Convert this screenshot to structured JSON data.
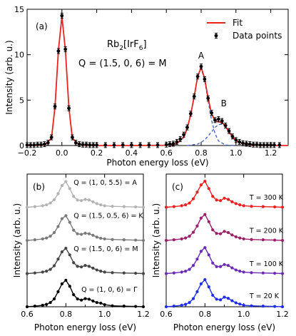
{
  "chart_data": [
    {
      "panel": "(a)",
      "type": "line",
      "compound": "Rb2[IrF6]",
      "compound_parts": {
        "base1": "Rb",
        "sub1": "2",
        "base2": "[IrF",
        "sub2": "6",
        "base3": "]"
      },
      "q_label": "Q = (1.5, 0, 6) = M",
      "xlabel": "Photon energy loss (eV)",
      "ylabel": "Intensity (arb. u.)",
      "xlim": [
        -0.2,
        1.3
      ],
      "ylim": [
        0,
        15
      ],
      "xticks": [
        "−0.2",
        "0.0",
        "0.2",
        "0.4",
        "0.6",
        "0.8",
        "1.0",
        "1.2"
      ],
      "xtick_values": [
        -0.2,
        0.0,
        0.2,
        0.4,
        0.6,
        0.8,
        1.0,
        1.2
      ],
      "yticks": [
        "0",
        "5",
        "10",
        "15"
      ],
      "ytick_values": [
        0,
        5,
        10,
        15
      ],
      "legend": {
        "position": "top-right",
        "fit": "Fit",
        "data": "Data points"
      },
      "peak_labels": [
        {
          "text": "A",
          "x": 0.8,
          "y": 9.6
        },
        {
          "text": "B",
          "x": 0.93,
          "y": 4.3
        }
      ],
      "fit_color": "#e8241f",
      "component_color": "#3a5fcd",
      "data_color": "#000000",
      "fit_curve": {
        "x": [
          -0.2,
          -0.1,
          -0.06,
          -0.04,
          -0.02,
          0.0,
          0.02,
          0.04,
          0.06,
          0.1,
          0.2,
          0.4,
          0.6,
          0.66,
          0.7,
          0.72,
          0.74,
          0.76,
          0.78,
          0.8,
          0.82,
          0.84,
          0.86,
          0.88,
          0.9,
          0.92,
          0.94,
          0.96,
          0.98,
          1.0,
          1.04,
          1.1,
          1.2,
          1.3
        ],
        "y": [
          0,
          0.05,
          0.8,
          4.2,
          10.5,
          14.2,
          10.5,
          4.2,
          0.8,
          0.05,
          0,
          0,
          0.03,
          0.2,
          0.9,
          1.9,
          3.4,
          5.4,
          7.6,
          8.6,
          7.4,
          5.2,
          3.5,
          2.7,
          2.6,
          2.55,
          2.1,
          1.5,
          0.95,
          0.55,
          0.2,
          0.06,
          0,
          0
        ]
      },
      "component_A": {
        "x": [
          0.6,
          0.66,
          0.7,
          0.72,
          0.74,
          0.76,
          0.78,
          0.8,
          0.82,
          0.84,
          0.86,
          0.88,
          0.9,
          0.94,
          1.0
        ],
        "y": [
          0,
          0.2,
          0.9,
          1.9,
          3.4,
          5.4,
          7.6,
          8.5,
          7.2,
          4.9,
          2.8,
          1.3,
          0.5,
          0.05,
          0
        ]
      },
      "component_B": {
        "x": [
          0.72,
          0.78,
          0.82,
          0.86,
          0.88,
          0.9,
          0.92,
          0.94,
          0.96,
          0.98,
          1.0,
          1.04,
          1.1,
          1.2
        ],
        "y": [
          0,
          0.15,
          0.6,
          1.5,
          2.0,
          2.3,
          2.35,
          2.1,
          1.6,
          1.05,
          0.6,
          0.2,
          0.05,
          0
        ]
      },
      "data_points": {
        "x": [
          -0.2,
          -0.18,
          -0.16,
          -0.14,
          -0.12,
          -0.1,
          -0.08,
          -0.06,
          -0.04,
          -0.02,
          0.0,
          0.02,
          0.04,
          0.06,
          0.08,
          0.1,
          0.12,
          0.14,
          0.16,
          0.18,
          0.2,
          0.25,
          0.3,
          0.35,
          0.4,
          0.45,
          0.5,
          0.55,
          0.6,
          0.62,
          0.64,
          0.66,
          0.68,
          0.7,
          0.72,
          0.74,
          0.76,
          0.78,
          0.8,
          0.82,
          0.84,
          0.86,
          0.88,
          0.9,
          0.92,
          0.94,
          0.96,
          0.98,
          1.0,
          1.02,
          1.04,
          1.06,
          1.08,
          1.1,
          1.12,
          1.14,
          1.16,
          1.18,
          1.2,
          1.22,
          1.25
        ],
        "y": [
          0.05,
          0.05,
          0.05,
          0.1,
          0.1,
          0.15,
          0.3,
          0.9,
          4.3,
          10.4,
          14.3,
          10.6,
          4.1,
          0.9,
          0.3,
          0.15,
          0.1,
          0.1,
          0.05,
          0.05,
          0.05,
          0.05,
          0.05,
          0.05,
          0.05,
          0.05,
          0.05,
          0.05,
          0.1,
          0.15,
          0.2,
          0.4,
          0.7,
          1.2,
          2.0,
          3.5,
          5.4,
          7.6,
          8.7,
          7.3,
          5.2,
          3.6,
          2.8,
          2.9,
          2.7,
          2.2,
          1.6,
          1.0,
          0.6,
          0.4,
          0.25,
          0.2,
          0.15,
          0.1,
          0.1,
          0.05,
          0.05,
          0.05,
          0.05,
          0.05,
          0.05
        ]
      }
    },
    {
      "panel": "(b)",
      "type": "line",
      "xlabel": "Photon energy loss (eV)",
      "ylabel": "Intensity (arb. u.)",
      "xlim": [
        0.6,
        1.2
      ],
      "ylim": [
        0,
        4.4
      ],
      "xticks": [
        "0.6",
        "0.8",
        "1.0",
        "1.2"
      ],
      "xtick_values": [
        0.6,
        0.8,
        1.0,
        1.2
      ],
      "series": [
        {
          "name": "Q = (1, 0, 5.5) = A",
          "color": "#b3b3b3",
          "offset": 3.3,
          "label_x": 0.84,
          "label_y": 4.05,
          "x": [
            0.6,
            0.64,
            0.68,
            0.7,
            0.72,
            0.74,
            0.76,
            0.78,
            0.8,
            0.82,
            0.84,
            0.86,
            0.88,
            0.9,
            0.92,
            0.94,
            0.96,
            0.98,
            1.0,
            1.04,
            1.1,
            1.16,
            1.2
          ],
          "y": [
            0.0,
            0.02,
            0.05,
            0.08,
            0.14,
            0.25,
            0.45,
            0.72,
            0.85,
            0.62,
            0.36,
            0.24,
            0.22,
            0.26,
            0.24,
            0.18,
            0.12,
            0.08,
            0.05,
            0.03,
            0.02,
            0.01,
            0.0
          ]
        },
        {
          "name": "Q = (1.5, 0.5, 6) = K",
          "color": "#7a7a7a",
          "offset": 2.2,
          "label_x": 0.84,
          "label_y": 2.95,
          "x": [
            0.6,
            0.64,
            0.68,
            0.7,
            0.72,
            0.74,
            0.76,
            0.78,
            0.8,
            0.82,
            0.84,
            0.86,
            0.88,
            0.9,
            0.92,
            0.94,
            0.96,
            0.98,
            1.0,
            1.04,
            1.1,
            1.16,
            1.2
          ],
          "y": [
            0.0,
            0.02,
            0.05,
            0.08,
            0.14,
            0.26,
            0.46,
            0.72,
            0.82,
            0.6,
            0.34,
            0.22,
            0.2,
            0.24,
            0.22,
            0.17,
            0.11,
            0.07,
            0.05,
            0.03,
            0.02,
            0.01,
            0.0
          ]
        },
        {
          "name": "Q = (1.5, 0, 6) = M",
          "color": "#454545",
          "offset": 1.1,
          "label_x": 0.84,
          "label_y": 1.85,
          "x": [
            0.6,
            0.64,
            0.68,
            0.7,
            0.72,
            0.74,
            0.76,
            0.78,
            0.8,
            0.82,
            0.84,
            0.86,
            0.88,
            0.9,
            0.92,
            0.94,
            0.96,
            0.98,
            1.0,
            1.04,
            1.1,
            1.16,
            1.2
          ],
          "y": [
            0.0,
            0.02,
            0.05,
            0.08,
            0.14,
            0.26,
            0.48,
            0.72,
            0.84,
            0.62,
            0.36,
            0.24,
            0.22,
            0.27,
            0.24,
            0.18,
            0.12,
            0.08,
            0.05,
            0.03,
            0.02,
            0.01,
            0.0
          ]
        },
        {
          "name": "Q = (1, 0, 6) = Γ",
          "color": "#000000",
          "offset": 0.0,
          "label_x": 0.88,
          "label_y": 0.5,
          "x": [
            0.6,
            0.64,
            0.68,
            0.7,
            0.72,
            0.74,
            0.76,
            0.78,
            0.8,
            0.82,
            0.84,
            0.86,
            0.88,
            0.9,
            0.92,
            0.94,
            0.96,
            0.98,
            1.0,
            1.04,
            1.1,
            1.16,
            1.2
          ],
          "y": [
            0.0,
            0.02,
            0.05,
            0.08,
            0.14,
            0.26,
            0.5,
            0.76,
            0.88,
            0.68,
            0.4,
            0.26,
            0.22,
            0.27,
            0.25,
            0.19,
            0.14,
            0.12,
            0.07,
            0.03,
            0.02,
            0.01,
            0.0
          ]
        }
      ]
    },
    {
      "panel": "(c)",
      "type": "line",
      "xlabel": "Photon energy loss (eV)",
      "ylabel": "Intensity (arb. u.)",
      "xlim": [
        0.6,
        1.2
      ],
      "ylim": [
        0,
        4.4
      ],
      "xticks": [
        "0.6",
        "0.8",
        "1.0",
        "1.2"
      ],
      "xtick_values": [
        0.6,
        0.8,
        1.0,
        1.2
      ],
      "series": [
        {
          "name": "T = 300 K",
          "color": "#ee1f1f",
          "offset": 3.3,
          "label_x": 1.03,
          "label_y": 3.55,
          "x": [
            0.6,
            0.64,
            0.68,
            0.7,
            0.72,
            0.74,
            0.76,
            0.78,
            0.8,
            0.82,
            0.84,
            0.86,
            0.88,
            0.9,
            0.92,
            0.94,
            0.96,
            0.98,
            1.0,
            1.04,
            1.1,
            1.16,
            1.2
          ],
          "y": [
            0.0,
            0.02,
            0.05,
            0.08,
            0.14,
            0.28,
            0.5,
            0.74,
            0.86,
            0.62,
            0.36,
            0.24,
            0.22,
            0.3,
            0.26,
            0.18,
            0.12,
            0.08,
            0.05,
            0.03,
            0.02,
            0.01,
            0.0
          ]
        },
        {
          "name": "T = 200 K",
          "color": "#9c1f6a",
          "offset": 2.2,
          "label_x": 1.03,
          "label_y": 2.45,
          "x": [
            0.6,
            0.64,
            0.68,
            0.7,
            0.72,
            0.74,
            0.76,
            0.78,
            0.8,
            0.82,
            0.84,
            0.86,
            0.88,
            0.9,
            0.92,
            0.94,
            0.96,
            0.98,
            1.0,
            1.04,
            1.1,
            1.16,
            1.2
          ],
          "y": [
            0.0,
            0.02,
            0.05,
            0.08,
            0.14,
            0.27,
            0.48,
            0.74,
            0.86,
            0.62,
            0.35,
            0.23,
            0.22,
            0.3,
            0.26,
            0.18,
            0.12,
            0.08,
            0.05,
            0.03,
            0.02,
            0.01,
            0.0
          ]
        },
        {
          "name": "T = 100 K",
          "color": "#6a2bb5",
          "offset": 1.1,
          "label_x": 1.03,
          "label_y": 1.35,
          "x": [
            0.6,
            0.64,
            0.68,
            0.7,
            0.72,
            0.74,
            0.76,
            0.78,
            0.8,
            0.82,
            0.84,
            0.86,
            0.88,
            0.9,
            0.92,
            0.94,
            0.96,
            0.98,
            1.0,
            1.04,
            1.1,
            1.16,
            1.2
          ],
          "y": [
            0.0,
            0.02,
            0.05,
            0.08,
            0.14,
            0.27,
            0.48,
            0.74,
            0.86,
            0.62,
            0.35,
            0.23,
            0.23,
            0.3,
            0.27,
            0.19,
            0.12,
            0.08,
            0.05,
            0.03,
            0.02,
            0.01,
            0.0
          ]
        },
        {
          "name": "T = 20 K",
          "color": "#1f2ee6",
          "offset": 0.0,
          "label_x": 1.03,
          "label_y": 0.28,
          "x": [
            0.6,
            0.64,
            0.68,
            0.7,
            0.72,
            0.74,
            0.76,
            0.78,
            0.8,
            0.82,
            0.84,
            0.86,
            0.88,
            0.9,
            0.92,
            0.94,
            0.96,
            0.98,
            1.0,
            1.04,
            1.1,
            1.16,
            1.2
          ],
          "y": [
            0.0,
            0.02,
            0.05,
            0.08,
            0.14,
            0.27,
            0.5,
            0.76,
            0.9,
            0.66,
            0.38,
            0.25,
            0.23,
            0.32,
            0.28,
            0.2,
            0.13,
            0.09,
            0.05,
            0.03,
            0.02,
            0.01,
            0.0
          ]
        }
      ]
    }
  ]
}
